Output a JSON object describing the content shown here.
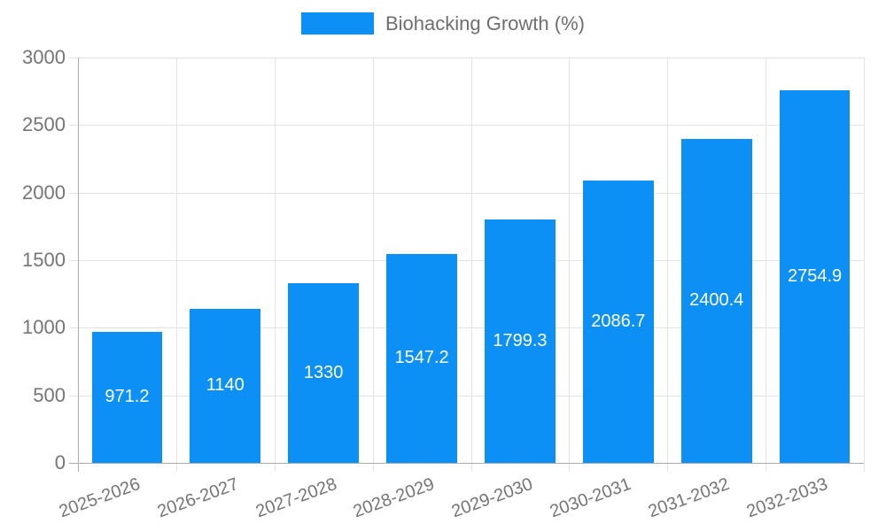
{
  "legend": {
    "label": "Biohacking Growth (%)",
    "swatch_color": "#0d90f5"
  },
  "chart_data": {
    "type": "bar",
    "title": "Biohacking Growth (%)",
    "series_name": "Biohacking Growth (%)",
    "categories": [
      "2025-2026",
      "2026-2027",
      "2027-2028",
      "2028-2029",
      "2029-2030",
      "2030-2031",
      "2031-2032",
      "2032-2033"
    ],
    "values": [
      971.2,
      1140,
      1330,
      1547.2,
      1799.3,
      2086.7,
      2400.4,
      2754.9
    ],
    "value_labels": [
      "971.2",
      "1140",
      "1330",
      "1547.2",
      "1799.3",
      "2086.7",
      "2400.4",
      "2754.9"
    ],
    "xlabel": "",
    "ylabel": "",
    "ylim": [
      0,
      3000
    ],
    "ytick_step": 500,
    "ytick_labels": [
      "0",
      "500",
      "1000",
      "1500",
      "2000",
      "2500",
      "3000"
    ],
    "grid": true,
    "legend_position": "top",
    "bar_color": "#0d90f5",
    "data_label_color": "#ffffff",
    "axis_text_color": "#757575",
    "gridline_color": "#e3e3e3",
    "axis_line_color": "#ababab"
  }
}
